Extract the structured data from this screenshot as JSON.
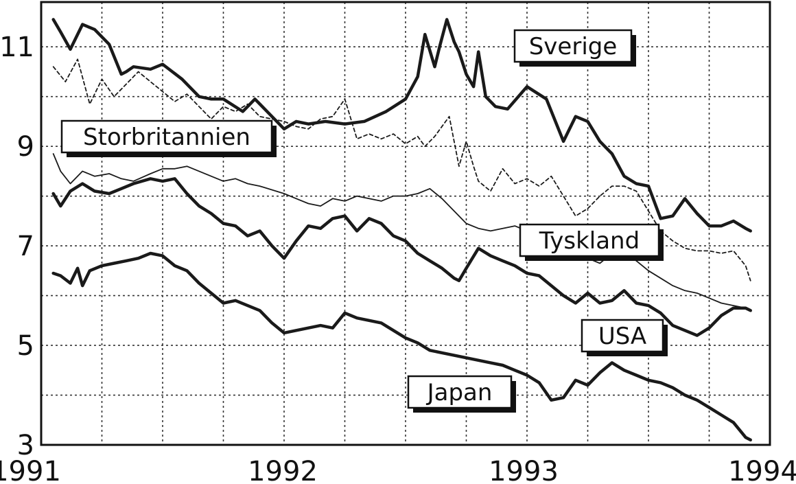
{
  "chart_data": {
    "type": "line",
    "title": "",
    "xlabel": "",
    "ylabel": "",
    "xlim": [
      1991,
      1994
    ],
    "ylim": [
      3,
      11.9
    ],
    "grid": true,
    "x_ticks": [
      "1991",
      "1992",
      "1993",
      "1994"
    ],
    "y_ticks": [
      "3",
      "5",
      "7",
      "9",
      "11"
    ],
    "series": [
      {
        "name": "Sverige",
        "style": "thick",
        "x": [
          1991.05,
          1991.08,
          1991.12,
          1991.17,
          1991.22,
          1991.28,
          1991.33,
          1991.35,
          1991.38,
          1991.45,
          1991.5,
          1991.58,
          1991.65,
          1991.7,
          1991.75,
          1991.83,
          1991.88,
          1991.92,
          1992.0,
          1992.05,
          1992.1,
          1992.17,
          1992.25,
          1992.33,
          1992.42,
          1992.5,
          1992.55,
          1992.58,
          1992.62,
          1992.64,
          1992.67,
          1992.7,
          1992.72,
          1992.75,
          1992.78,
          1992.8,
          1992.83,
          1992.87,
          1992.92,
          1993.0,
          1993.08,
          1993.15,
          1993.2,
          1993.25,
          1993.3,
          1993.35,
          1993.4,
          1993.45,
          1993.5,
          1993.55,
          1993.6,
          1993.65,
          1993.7,
          1993.75,
          1993.8,
          1993.85,
          1993.9,
          1993.92
        ],
        "values": [
          11.55,
          11.3,
          10.95,
          11.45,
          11.35,
          11.05,
          10.45,
          10.5,
          10.6,
          10.55,
          10.65,
          10.35,
          10.0,
          9.95,
          9.95,
          9.7,
          9.95,
          9.75,
          9.35,
          9.5,
          9.45,
          9.5,
          9.45,
          9.5,
          9.7,
          9.95,
          10.4,
          11.25,
          10.6,
          11.0,
          11.55,
          11.1,
          10.9,
          10.45,
          10.2,
          10.9,
          10.0,
          9.8,
          9.75,
          10.2,
          9.95,
          9.1,
          9.6,
          9.5,
          9.1,
          8.85,
          8.4,
          8.25,
          8.2,
          7.55,
          7.6,
          7.95,
          7.65,
          7.4,
          7.4,
          7.5,
          7.35,
          7.3
        ]
      },
      {
        "name": "Storbritannien",
        "style": "dashed",
        "x": [
          1991.05,
          1991.1,
          1991.15,
          1991.2,
          1991.25,
          1991.3,
          1991.35,
          1991.4,
          1991.45,
          1991.5,
          1991.55,
          1991.6,
          1991.65,
          1991.7,
          1991.75,
          1991.8,
          1991.85,
          1991.9,
          1992.0,
          1992.05,
          1992.1,
          1992.15,
          1992.2,
          1992.25,
          1992.3,
          1992.35,
          1992.4,
          1992.45,
          1992.5,
          1992.55,
          1992.58,
          1992.62,
          1992.65,
          1992.68,
          1992.72,
          1992.75,
          1992.78,
          1992.8,
          1992.85,
          1992.9,
          1992.95,
          1993.0,
          1993.05,
          1993.1,
          1993.15,
          1993.2,
          1993.25,
          1993.3,
          1993.35,
          1993.4,
          1993.45,
          1993.5,
          1993.55,
          1993.6,
          1993.65,
          1993.7,
          1993.75,
          1993.8,
          1993.85,
          1993.9,
          1993.92
        ],
        "values": [
          10.6,
          10.3,
          10.75,
          9.85,
          10.35,
          10.0,
          10.25,
          10.5,
          10.3,
          10.1,
          9.9,
          10.05,
          9.8,
          9.55,
          9.8,
          9.7,
          9.85,
          9.6,
          9.5,
          9.4,
          9.35,
          9.55,
          9.6,
          9.95,
          9.15,
          9.25,
          9.15,
          9.25,
          9.05,
          9.2,
          9.0,
          9.2,
          9.4,
          9.6,
          8.6,
          9.1,
          8.6,
          8.3,
          8.1,
          8.55,
          8.25,
          8.35,
          8.2,
          8.4,
          8.0,
          7.6,
          7.75,
          8.0,
          8.2,
          8.2,
          8.1,
          7.7,
          7.3,
          7.1,
          6.95,
          6.9,
          6.9,
          6.85,
          6.9,
          6.6,
          6.3
        ]
      },
      {
        "name": "Tyskland",
        "style": "thin",
        "x": [
          1991.05,
          1991.08,
          1991.12,
          1991.17,
          1991.22,
          1991.28,
          1991.33,
          1991.38,
          1991.45,
          1991.5,
          1991.55,
          1991.6,
          1991.65,
          1991.7,
          1991.75,
          1991.8,
          1991.85,
          1991.9,
          1992.0,
          1992.05,
          1992.1,
          1992.15,
          1992.2,
          1992.25,
          1992.3,
          1992.35,
          1992.4,
          1992.45,
          1992.5,
          1992.55,
          1992.6,
          1992.65,
          1992.7,
          1992.75,
          1992.8,
          1992.85,
          1992.9,
          1992.95,
          1993.0,
          1993.05,
          1993.1,
          1993.15,
          1993.2,
          1993.25,
          1993.3,
          1993.35,
          1993.4,
          1993.45,
          1993.5,
          1993.55,
          1993.6,
          1993.65,
          1993.7,
          1993.75,
          1993.8,
          1993.85,
          1993.9,
          1993.92
        ],
        "values": [
          8.85,
          8.5,
          8.25,
          8.5,
          8.4,
          8.45,
          8.35,
          8.3,
          8.45,
          8.55,
          8.55,
          8.6,
          8.5,
          8.4,
          8.3,
          8.35,
          8.25,
          8.2,
          8.05,
          7.95,
          7.85,
          7.8,
          7.95,
          7.9,
          8.0,
          7.95,
          7.9,
          8.0,
          8.0,
          8.05,
          8.15,
          7.95,
          7.7,
          7.45,
          7.35,
          7.3,
          7.35,
          7.4,
          7.3,
          7.15,
          7.0,
          6.85,
          6.75,
          6.75,
          6.65,
          6.85,
          6.85,
          6.7,
          6.5,
          6.35,
          6.2,
          6.1,
          6.05,
          5.95,
          5.85,
          5.8,
          5.75,
          5.7
        ]
      },
      {
        "name": "USA",
        "style": "thick",
        "x": [
          1991.05,
          1991.08,
          1991.12,
          1991.17,
          1991.22,
          1991.28,
          1991.33,
          1991.38,
          1991.45,
          1991.5,
          1991.55,
          1991.6,
          1991.65,
          1991.7,
          1991.75,
          1991.8,
          1991.85,
          1991.9,
          1991.95,
          1992.0,
          1992.05,
          1992.1,
          1992.15,
          1992.2,
          1992.25,
          1992.3,
          1992.35,
          1992.4,
          1992.45,
          1992.5,
          1992.55,
          1992.6,
          1992.65,
          1992.7,
          1992.72,
          1992.75,
          1992.8,
          1992.85,
          1992.9,
          1992.95,
          1993.0,
          1993.05,
          1993.1,
          1993.15,
          1993.2,
          1993.25,
          1993.3,
          1993.35,
          1993.4,
          1993.45,
          1993.5,
          1993.55,
          1993.6,
          1993.65,
          1993.7,
          1993.75,
          1993.8,
          1993.85,
          1993.9,
          1993.92
        ],
        "values": [
          8.05,
          7.8,
          8.1,
          8.25,
          8.1,
          8.05,
          8.15,
          8.25,
          8.35,
          8.3,
          8.35,
          8.05,
          7.8,
          7.65,
          7.45,
          7.4,
          7.2,
          7.3,
          7.0,
          6.75,
          7.1,
          7.4,
          7.35,
          7.55,
          7.6,
          7.3,
          7.55,
          7.45,
          7.2,
          7.1,
          6.85,
          6.7,
          6.55,
          6.35,
          6.3,
          6.55,
          6.95,
          6.8,
          6.7,
          6.6,
          6.45,
          6.4,
          6.2,
          6.0,
          5.85,
          6.05,
          5.85,
          5.9,
          6.1,
          5.85,
          5.8,
          5.65,
          5.4,
          5.3,
          5.2,
          5.35,
          5.6,
          5.75,
          5.75,
          5.7
        ]
      },
      {
        "name": "Japan",
        "style": "thick",
        "x": [
          1991.05,
          1991.08,
          1991.12,
          1991.15,
          1991.17,
          1991.2,
          1991.25,
          1991.3,
          1991.35,
          1991.4,
          1991.45,
          1991.5,
          1991.55,
          1991.6,
          1991.65,
          1991.7,
          1991.75,
          1991.8,
          1991.85,
          1991.9,
          1991.95,
          1992.0,
          1992.05,
          1992.1,
          1992.15,
          1992.2,
          1992.25,
          1992.3,
          1992.35,
          1992.4,
          1992.45,
          1992.5,
          1992.55,
          1992.6,
          1992.65,
          1992.7,
          1992.75,
          1992.8,
          1992.85,
          1992.9,
          1992.95,
          1993.0,
          1993.05,
          1993.1,
          1993.15,
          1993.2,
          1993.25,
          1993.3,
          1993.35,
          1993.4,
          1993.45,
          1993.5,
          1993.55,
          1993.6,
          1993.65,
          1993.7,
          1993.75,
          1993.8,
          1993.85,
          1993.9,
          1993.92
        ],
        "values": [
          6.45,
          6.4,
          6.25,
          6.55,
          6.2,
          6.5,
          6.6,
          6.65,
          6.7,
          6.75,
          6.85,
          6.8,
          6.6,
          6.5,
          6.25,
          6.05,
          5.85,
          5.9,
          5.8,
          5.7,
          5.45,
          5.25,
          5.3,
          5.35,
          5.4,
          5.35,
          5.65,
          5.55,
          5.5,
          5.45,
          5.3,
          5.15,
          5.05,
          4.9,
          4.85,
          4.8,
          4.75,
          4.7,
          4.65,
          4.6,
          4.5,
          4.4,
          4.25,
          3.9,
          3.95,
          4.3,
          4.2,
          4.45,
          4.65,
          4.5,
          4.4,
          4.3,
          4.25,
          4.15,
          4.0,
          3.9,
          3.75,
          3.6,
          3.45,
          3.15,
          3.1
        ]
      }
    ],
    "annotations": [
      {
        "text": "Sverige",
        "series": "Sverige"
      },
      {
        "text": "Storbritannien",
        "series": "Storbritannien"
      },
      {
        "text": "Tyskland",
        "series": "Tyskland"
      },
      {
        "text": "USA",
        "series": "USA"
      },
      {
        "text": "Japan",
        "series": "Japan"
      }
    ]
  }
}
